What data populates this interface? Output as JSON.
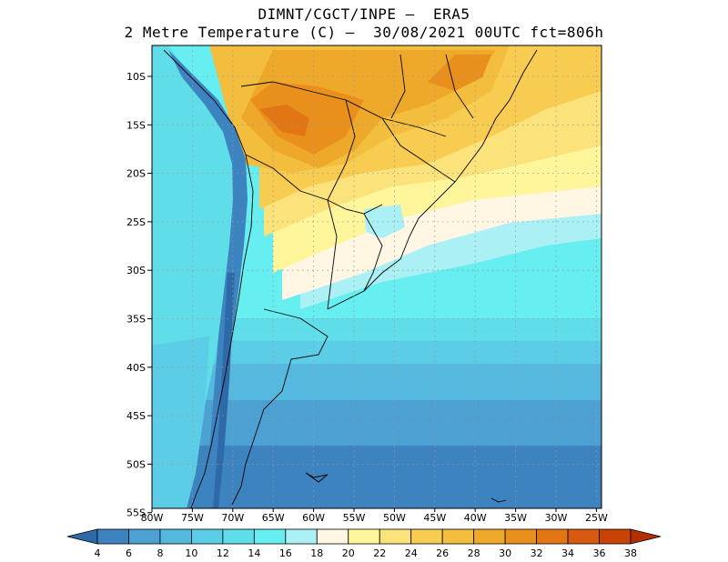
{
  "title": {
    "line1": "DIMNT/CGCT/INPE –  ERA5",
    "line2": "2 Metre Temperature (C) –  30/08/2021 00UTC fct=806h"
  },
  "axes": {
    "lat_labels": [
      "10S",
      "15S",
      "20S",
      "25S",
      "30S",
      "35S",
      "40S",
      "45S",
      "50S",
      "55S"
    ],
    "lon_labels": [
      "80W",
      "75W",
      "70W",
      "65W",
      "60W",
      "55W",
      "50W",
      "45W",
      "40W",
      "35W",
      "30W",
      "25W"
    ]
  },
  "colorbar": {
    "labels": [
      "4",
      "6",
      "8",
      "10",
      "12",
      "14",
      "16",
      "18",
      "20",
      "22",
      "24",
      "26",
      "28",
      "30",
      "32",
      "34",
      "36",
      "38"
    ],
    "colors": [
      "#2f6aa8",
      "#3d83c0",
      "#4da0d2",
      "#55b8de",
      "#5ccde6",
      "#5fdde8",
      "#66eef0",
      "#aaf0f5",
      "#fff6e4",
      "#fff59a",
      "#fbe27a",
      "#f7cc50",
      "#f3bd3e",
      "#eea82a",
      "#e9901c",
      "#e27514",
      "#d65a10",
      "#c84306",
      "#b23000"
    ]
  },
  "colors": {
    "grid": "#9a9a9a",
    "border": "#000000"
  }
}
